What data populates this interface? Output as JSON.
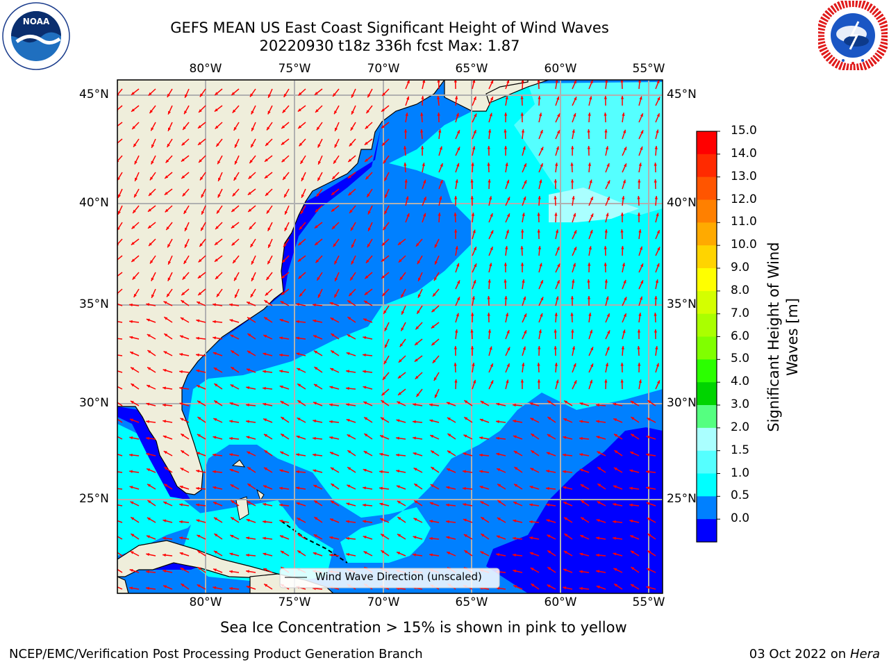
{
  "header": {
    "title": "GEFS MEAN US East Coast Significant Height of Wind Waves",
    "subtitle": "20220930 t18z 336h fcst   Max: 1.87"
  },
  "logos": {
    "left": {
      "text": "NOAA",
      "ring_text": "NATIONAL OCEANIC AND ATMOSPHERIC ADMINISTRATION · U.S. DEPARTMENT OF COMMERCE"
    },
    "right": {
      "ring_text": "NATIONAL WEATHER SERVICE"
    }
  },
  "map": {
    "lon_labels": [
      "80°W",
      "75°W",
      "70°W",
      "65°W",
      "60°W",
      "55°W"
    ],
    "lat_labels": [
      "45°N",
      "40°N",
      "35°N",
      "30°N",
      "25°N"
    ],
    "legend_label": "Wind Wave Direction (unscaled)",
    "arrow_color": "#ff0000",
    "land_color": "#efeedb"
  },
  "colorbar": {
    "label": "Significant Height of Wind Waves [m]",
    "label_line1": "Significant Height of Wind",
    "label_line2": "Waves [m]",
    "ticks": [
      "15.0",
      "14.0",
      "13.0",
      "12.0",
      "11.0",
      "10.0",
      "9.0",
      "8.0",
      "7.0",
      "6.0",
      "5.0",
      "4.0",
      "3.0",
      "2.0",
      "1.5",
      "1.0",
      "0.5",
      "0.0"
    ],
    "colors_top_to_bottom": [
      "#ff0000",
      "#ff2a00",
      "#ff5500",
      "#ff8000",
      "#ffaa00",
      "#ffd400",
      "#ffff00",
      "#d4ff00",
      "#aaff00",
      "#80ff00",
      "#2bff00",
      "#00d400",
      "#55ff80",
      "#aaffff",
      "#55ffff",
      "#00ffff",
      "#0080ff",
      "#0000ff"
    ]
  },
  "footer": {
    "note": "Sea Ice Concentration > 15% is shown in pink to yellow",
    "left": "NCEP/EMC/Verification Post Processing Product Generation Branch",
    "right_date": "03 Oct 2022 on ",
    "right_host": "Hera"
  }
}
